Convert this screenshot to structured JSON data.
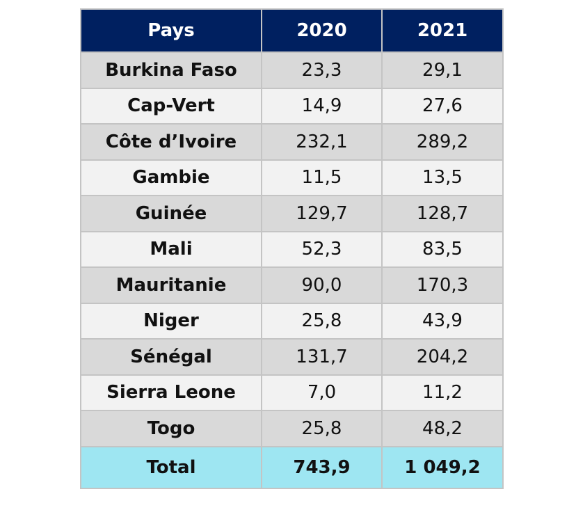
{
  "table": {
    "headers": [
      "Pays",
      "2020",
      "2021"
    ],
    "rows": [
      {
        "pays": "Burkina Faso",
        "y2020": "23,3",
        "y2021": "29,1"
      },
      {
        "pays": "Cap-Vert",
        "y2020": "14,9",
        "y2021": "27,6"
      },
      {
        "pays": "Côte d’Ivoire",
        "y2020": "232,1",
        "y2021": "289,2"
      },
      {
        "pays": "Gambie",
        "y2020": "11,5",
        "y2021": "13,5"
      },
      {
        "pays": "Guinée",
        "y2020": "129,7",
        "y2021": "128,7"
      },
      {
        "pays": "Mali",
        "y2020": "52,3",
        "y2021": "83,5"
      },
      {
        "pays": "Mauritanie",
        "y2020": "90,0",
        "y2021": "170,3"
      },
      {
        "pays": "Niger",
        "y2020": "25,8",
        "y2021": "43,9"
      },
      {
        "pays": "Sénégal",
        "y2020": "131,7",
        "y2021": "204,2"
      },
      {
        "pays": "Sierra Leone",
        "y2020": "7,0",
        "y2021": "11,2"
      },
      {
        "pays": "Togo",
        "y2020": "25,8",
        "y2021": "48,2"
      }
    ],
    "total": {
      "label": "Total",
      "y2020": "743,9",
      "y2021": "1 049,2"
    }
  },
  "colors": {
    "header_bg": "#002060",
    "row_dark": "#d9d9d9",
    "row_light": "#f2f2f2",
    "total_bg": "#9ee6f2"
  }
}
